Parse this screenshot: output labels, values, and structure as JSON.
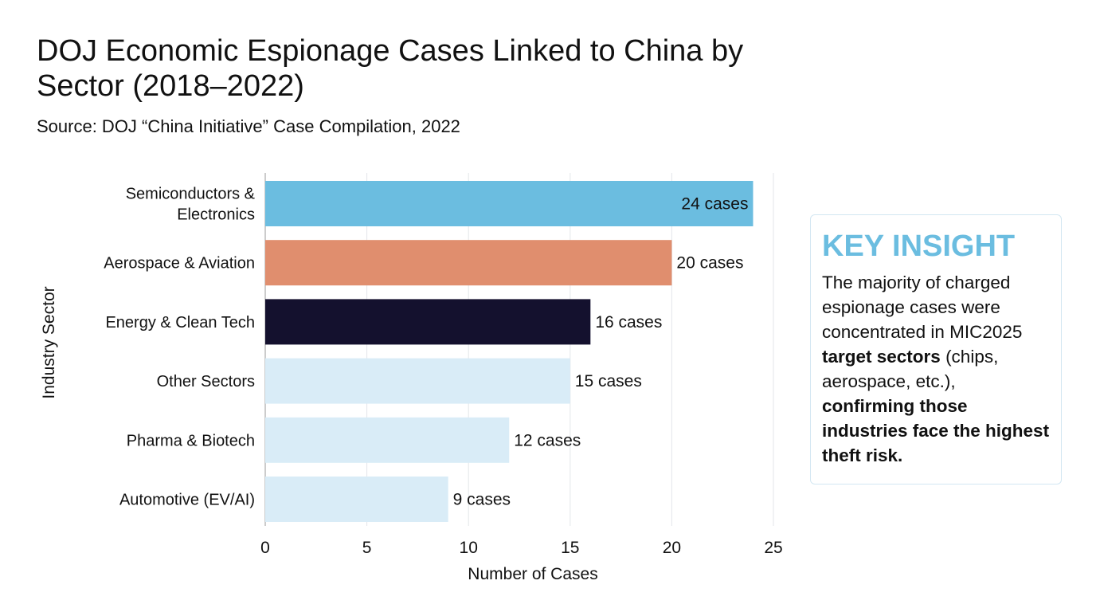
{
  "title": "DOJ Economic Espionage Cases Linked to China by Sector (2018–2022)",
  "subtitle": "Source: DOJ “China Initiative” Case Compilation, 2022",
  "chart_data": {
    "type": "bar",
    "orientation": "horizontal",
    "categories": [
      [
        "Semiconductors &",
        "Electronics"
      ],
      [
        "Aerospace & Aviation"
      ],
      [
        "Energy & Clean Tech"
      ],
      [
        "Other Sectors"
      ],
      [
        "Pharma & Biotech"
      ],
      [
        "Automotive (EV/AI)"
      ]
    ],
    "values": [
      24,
      20,
      16,
      15,
      12,
      9
    ],
    "data_labels": [
      "24 cases",
      "20 cases",
      "16 cases",
      "15 cases",
      "12 cases",
      "9 cases"
    ],
    "colors": [
      "#6bbde0",
      "#e08e6e",
      "#14112e",
      "#d9ecf7",
      "#d9ecf7",
      "#d9ecf7"
    ],
    "xlabel": "Number of Cases",
    "ylabel": "Industry Sector",
    "xlim": [
      0,
      25
    ],
    "xticks": [
      0,
      5,
      10,
      15,
      20,
      25
    ],
    "grid": true
  },
  "insight": {
    "heading": "KEY INSIGHT",
    "text_1": "The majority of charged espionage cases were concentrated in MIC2025 ",
    "bold_1": "target sectors",
    "text_2": " (chips, aerospace, etc.), ",
    "bold_2": "confirming those industries face the highest theft risk."
  }
}
